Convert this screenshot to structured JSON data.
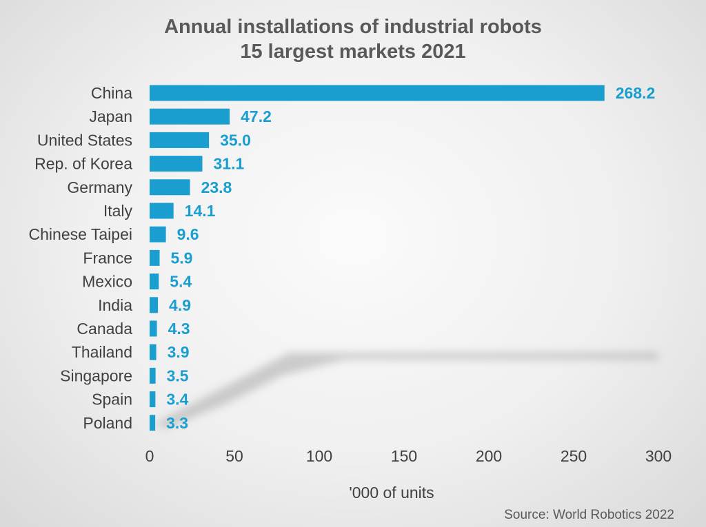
{
  "chart_data": {
    "type": "bar",
    "orientation": "horizontal",
    "title": "Annual installations of industrial robots",
    "subtitle": "15 largest markets 2021",
    "categories": [
      "China",
      "Japan",
      "United States",
      "Rep. of Korea",
      "Germany",
      "Italy",
      "Chinese Taipei",
      "France",
      "Mexico",
      "India",
      "Canada",
      "Thailand",
      "Singapore",
      "Spain",
      "Poland"
    ],
    "values": [
      268.2,
      47.2,
      35.0,
      31.1,
      23.8,
      14.1,
      9.6,
      5.9,
      5.4,
      4.9,
      4.3,
      3.9,
      3.5,
      3.4,
      3.3
    ],
    "value_labels": [
      "268.2",
      "47.2",
      "35.0",
      "31.1",
      "23.8",
      "14.1",
      "9.6",
      "5.9",
      "5.4",
      "4.9",
      "4.3",
      "3.9",
      "3.5",
      "3.4",
      "3.3"
    ],
    "xlabel": "'000 of units",
    "ylabel": "",
    "xlim": [
      0,
      300
    ],
    "xticks": [
      0,
      50,
      100,
      150,
      200,
      250,
      300
    ],
    "xtick_labels": [
      "0",
      "50",
      "100",
      "150",
      "200",
      "250",
      "300"
    ],
    "grid": false,
    "legend": "none",
    "bar_color": "#1a9ed0",
    "source": "Source: World Robotics 2022"
  }
}
